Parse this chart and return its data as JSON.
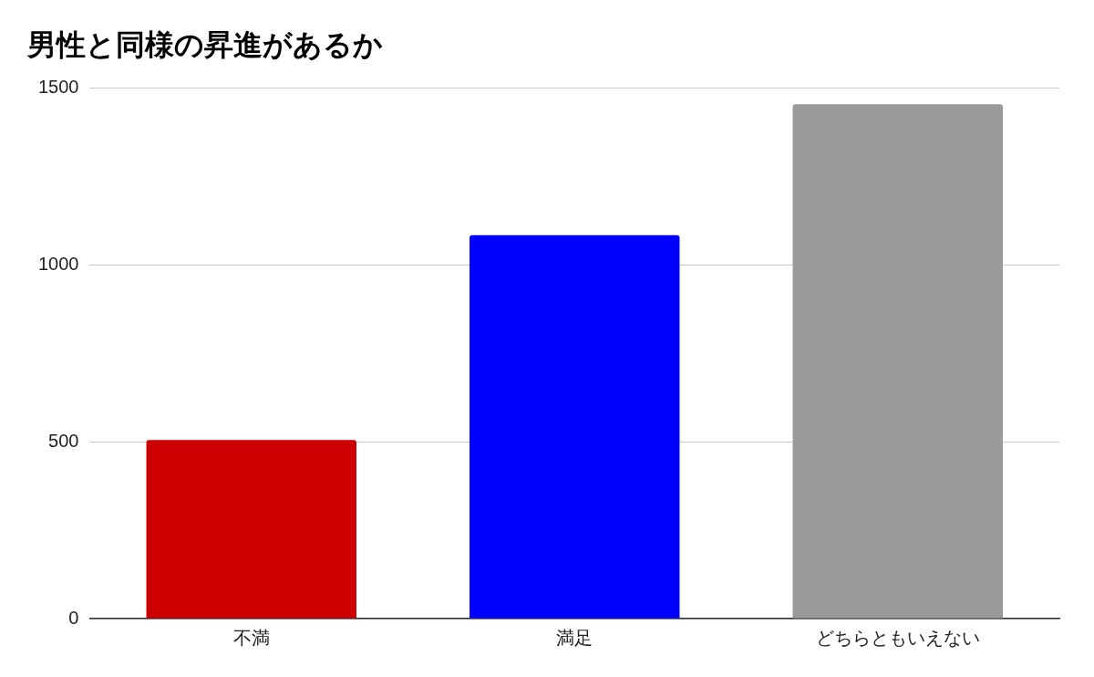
{
  "chart_data": {
    "type": "bar",
    "title": "男性と同様の昇進があるか",
    "categories": [
      "不満",
      "満足",
      "どちらともいえない"
    ],
    "values": [
      505,
      1084,
      1454
    ],
    "colors": [
      "#cc0000",
      "#0000ff",
      "#999999"
    ],
    "ylim": [
      0,
      1500
    ],
    "yticks": [
      0,
      500,
      1000,
      1500
    ],
    "grid": "y"
  }
}
